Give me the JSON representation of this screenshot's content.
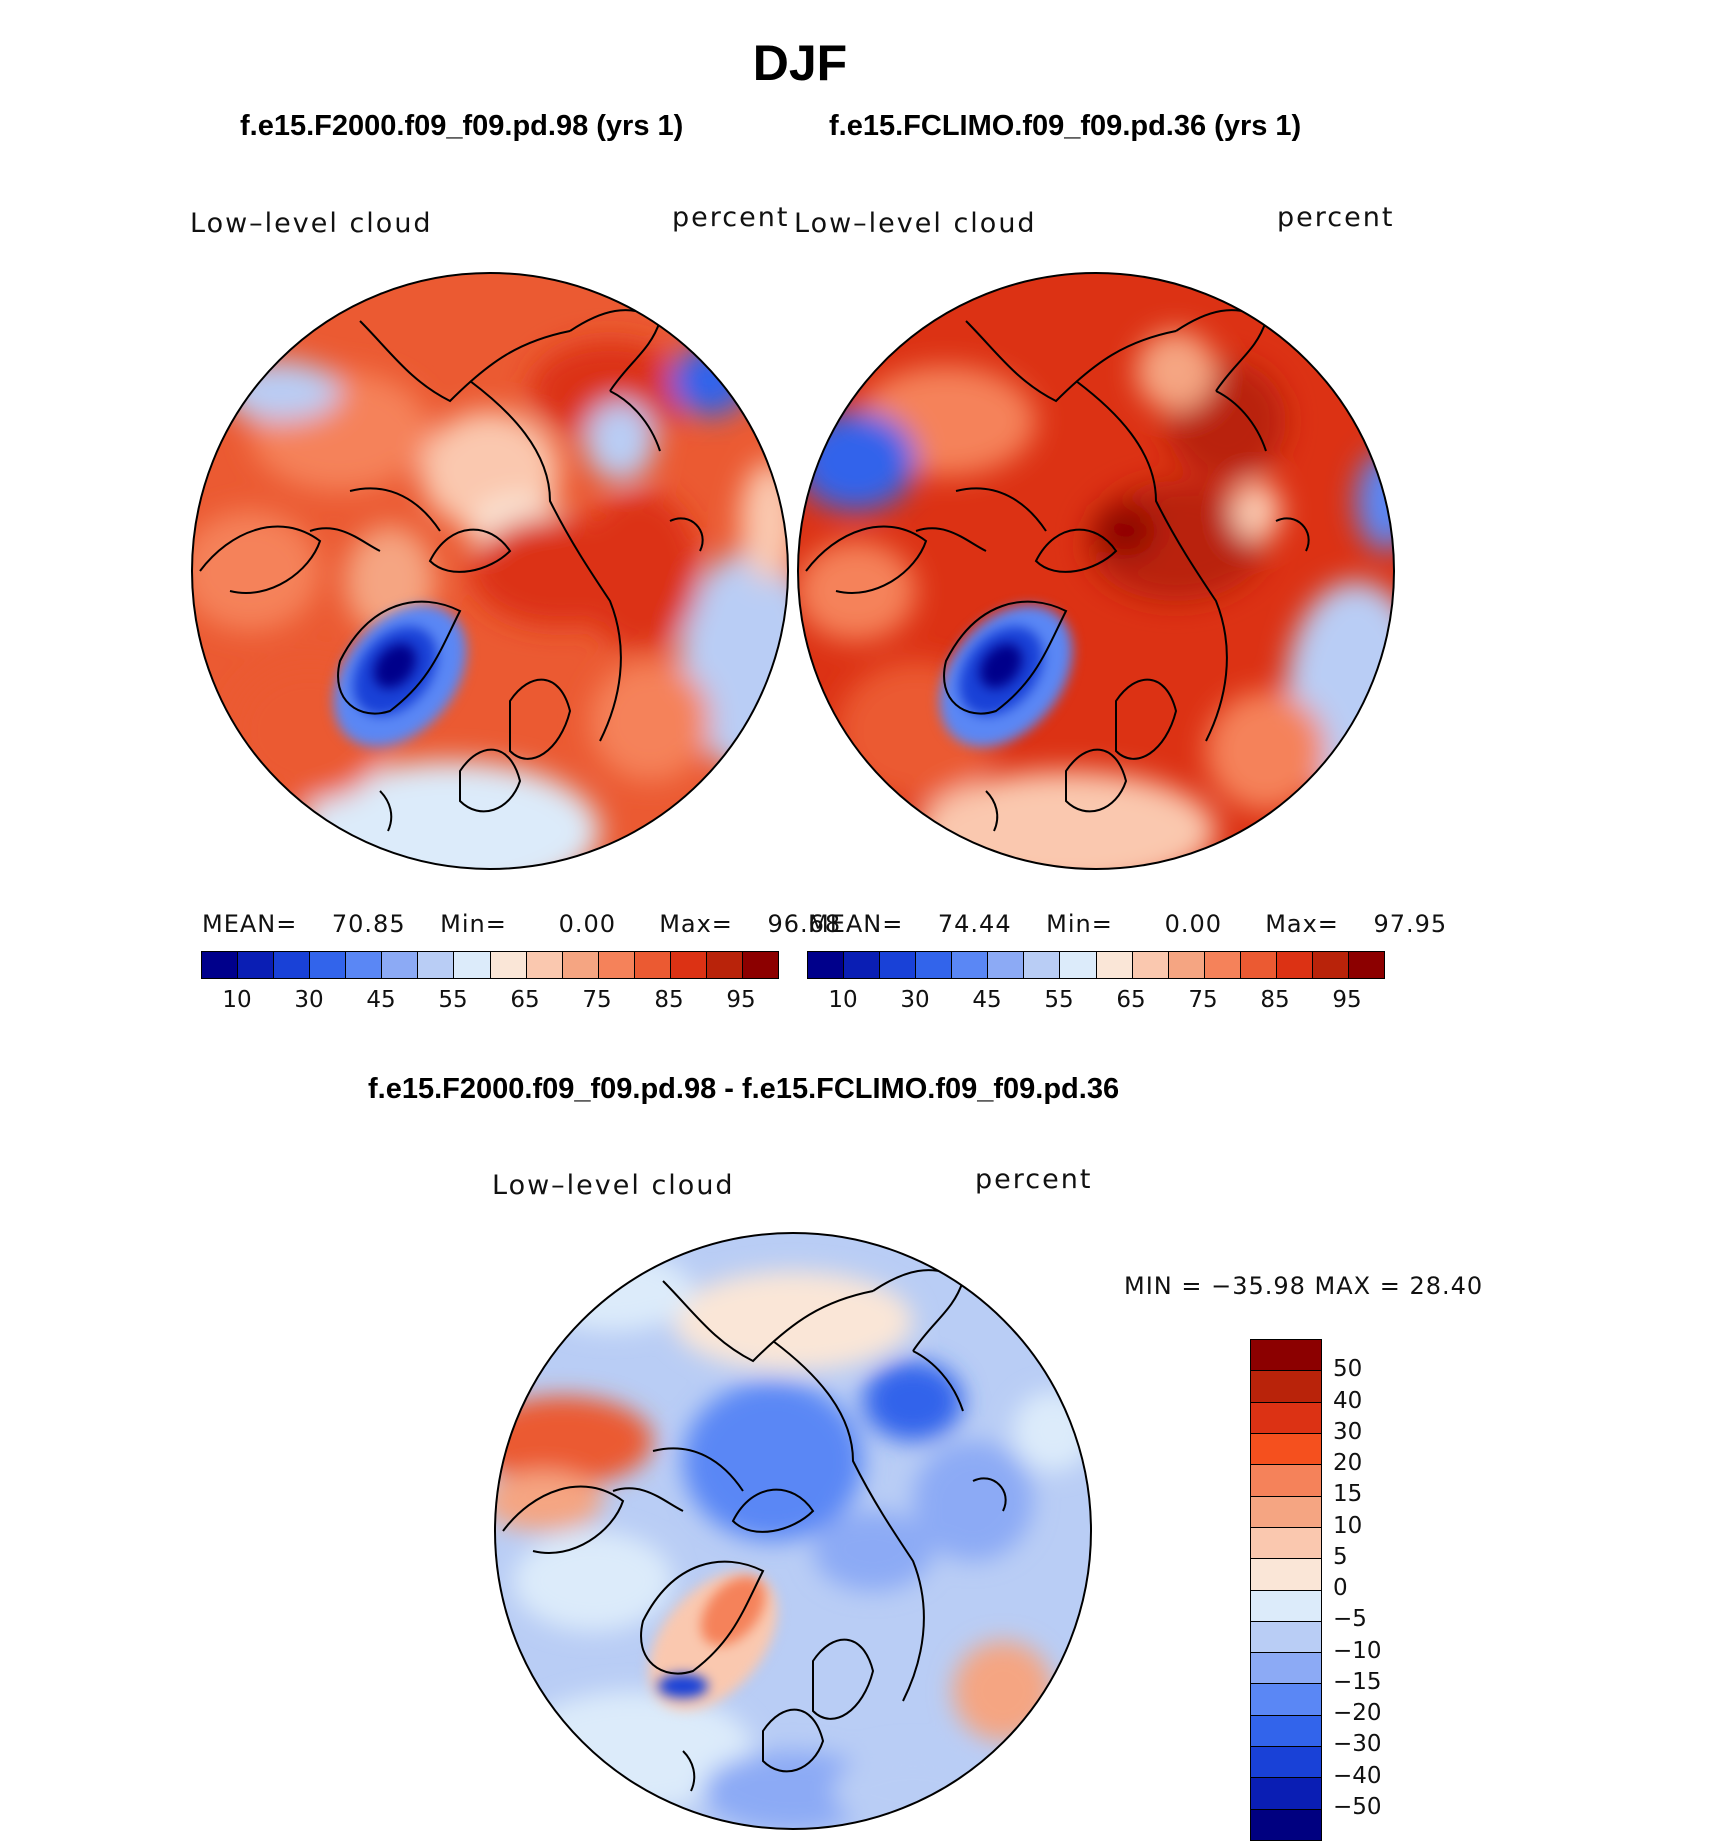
{
  "title": "DJF",
  "plots": [
    {
      "run_title": "f.e15.F2000.f09_f09.pd.98 (yrs 1)",
      "variable": "Low–level cloud",
      "units": "percent",
      "mean_label": "MEAN=",
      "mean": "70.85",
      "min_label": "Min=",
      "min": "0.00",
      "max_label": "Max=",
      "max": "96.68"
    },
    {
      "run_title": "f.e15.FCLIMO.f09_f09.pd.36 (yrs 1)",
      "variable": "Low–level cloud",
      "units": "percent",
      "mean_label": "MEAN=",
      "mean": "74.44",
      "min_label": "Min=",
      "min": "0.00",
      "max_label": "Max=",
      "max": "97.95"
    }
  ],
  "colorbar": {
    "colors": [
      "#00008b",
      "#0a1eb4",
      "#1941d7",
      "#3264eb",
      "#5a87f5",
      "#8caaf5",
      "#b9cdf5",
      "#dcebfa",
      "#fae6d7",
      "#fac8af",
      "#f5a582",
      "#f5825a",
      "#eb5a32",
      "#dc3214",
      "#b9230a",
      "#8c0000"
    ],
    "ticks": [
      "10",
      "30",
      "45",
      "55",
      "65",
      "75",
      "85",
      "95"
    ]
  },
  "diff": {
    "title": "f.e15.F2000.f09_f09.pd.98 - f.e15.FCLIMO.f09_f09.pd.36",
    "variable": "Low–level cloud",
    "units": "percent",
    "min_max": "MIN = −35.98  MAX =   28.40",
    "colorbar_colors": [
      "#8c0000",
      "#b9230a",
      "#dc3214",
      "#f5501e",
      "#f5825a",
      "#f5a582",
      "#fac8af",
      "#fae6d7",
      "#dcebfa",
      "#b9cdf5",
      "#8caaf5",
      "#5a87f5",
      "#3264eb",
      "#1941d7",
      "#0a1eb4",
      "#000080"
    ],
    "colorbar_ticks": [
      "50",
      "40",
      "30",
      "20",
      "15",
      "10",
      "5",
      "0",
      "−5",
      "−10",
      "−15",
      "−20",
      "−30",
      "−40",
      "−50"
    ]
  }
}
